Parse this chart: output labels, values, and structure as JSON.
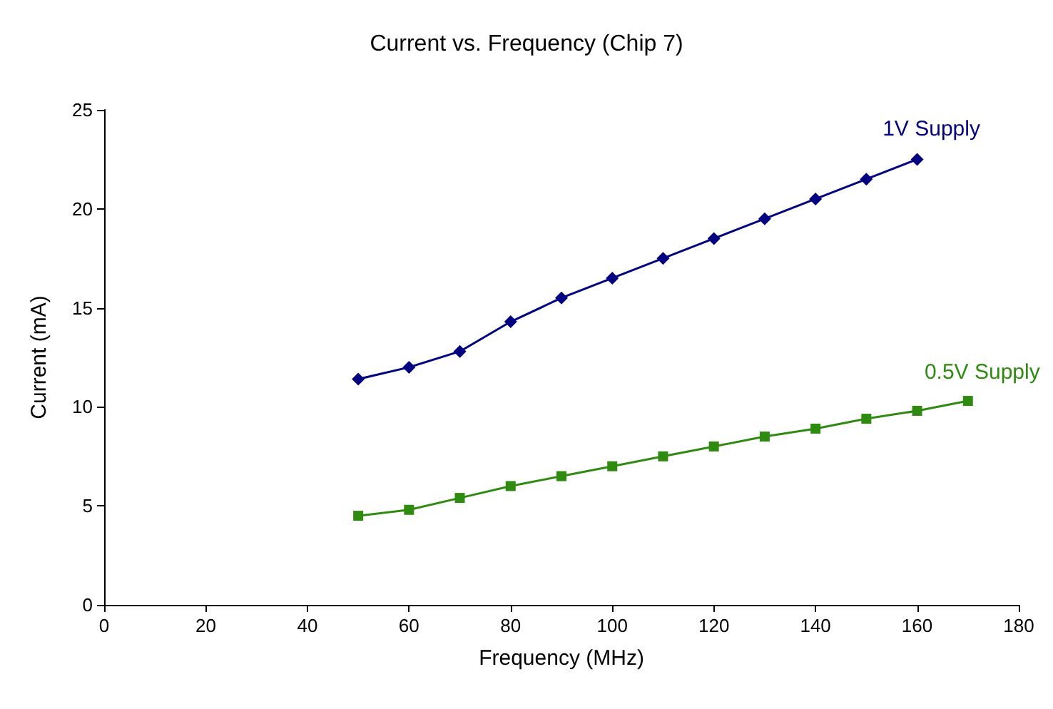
{
  "chart_data": {
    "type": "line",
    "title": "Current vs. Frequency (Chip 7)",
    "xlabel": "Frequency (MHz)",
    "ylabel": "Current (mA)",
    "x": [
      50,
      60,
      70,
      80,
      90,
      100,
      110,
      120,
      130,
      140,
      150,
      160,
      170
    ],
    "xlim": [
      0,
      180
    ],
    "xticks": [
      0,
      20,
      40,
      60,
      80,
      100,
      120,
      140,
      160,
      180
    ],
    "ylim": [
      0,
      25
    ],
    "yticks": [
      0,
      5,
      10,
      15,
      20,
      25
    ],
    "grid": false,
    "legend": false,
    "series": [
      {
        "name": "1V Supply",
        "color": "#000080",
        "marker": "diamond",
        "values": [
          11.4,
          12.0,
          12.8,
          14.3,
          15.5,
          16.5,
          17.5,
          18.5,
          19.5,
          20.5,
          21.5,
          22.5,
          null
        ]
      },
      {
        "name": "0.5V Supply",
        "color": "#2e8b0f",
        "marker": "square",
        "values": [
          4.5,
          4.8,
          5.4,
          6.0,
          6.5,
          7.0,
          7.5,
          8.0,
          8.5,
          8.9,
          9.4,
          9.8,
          10.3
        ]
      }
    ]
  }
}
